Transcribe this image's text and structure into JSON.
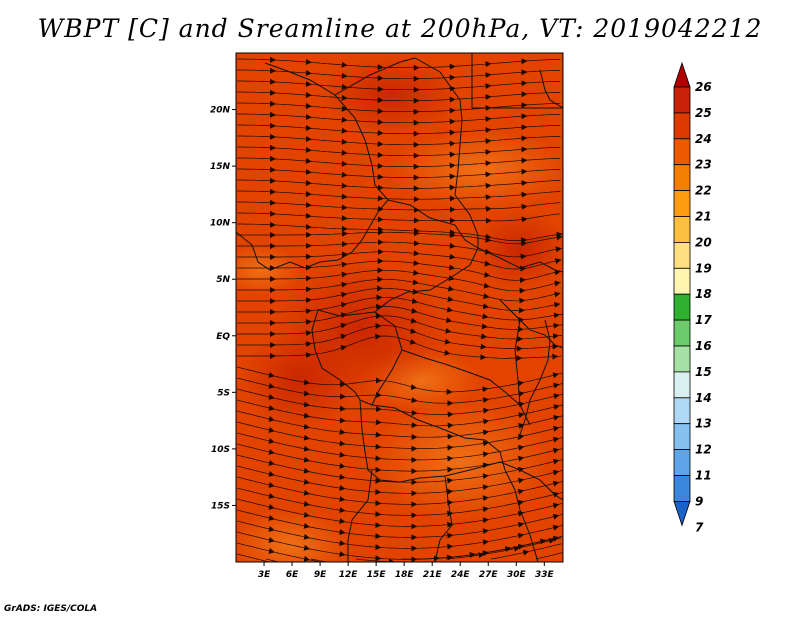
{
  "title": "WBPT [C] and Sreamline at 200hPa, VT: 2019042212",
  "credit": "GrADS: IGES/COLA",
  "chart_data": {
    "type": "heatmap",
    "variable": "WBPT [C]",
    "overlay": "streamlines",
    "level": "200hPa",
    "valid_time": "2019042212",
    "xlim": [
      0,
      35
    ],
    "ylim": [
      -20,
      25
    ],
    "x_ticks": [
      {
        "value": 3,
        "label": "3E"
      },
      {
        "value": 6,
        "label": "6E"
      },
      {
        "value": 9,
        "label": "9E"
      },
      {
        "value": 12,
        "label": "12E"
      },
      {
        "value": 15,
        "label": "15E"
      },
      {
        "value": 18,
        "label": "18E"
      },
      {
        "value": 21,
        "label": "21E"
      },
      {
        "value": 24,
        "label": "24E"
      },
      {
        "value": 27,
        "label": "27E"
      },
      {
        "value": 30,
        "label": "30E"
      },
      {
        "value": 33,
        "label": "33E"
      }
    ],
    "y_ticks": [
      {
        "value": 20,
        "label": "20N"
      },
      {
        "value": 15,
        "label": "15N"
      },
      {
        "value": 10,
        "label": "10N"
      },
      {
        "value": 5,
        "label": "5N"
      },
      {
        "value": 0,
        "label": "EQ"
      },
      {
        "value": -5,
        "label": "5S"
      },
      {
        "value": -10,
        "label": "10S"
      },
      {
        "value": -15,
        "label": "15S"
      }
    ],
    "colorbar": {
      "levels": [
        "26",
        "25",
        "24",
        "23",
        "22",
        "21",
        "20",
        "19",
        "18",
        "17",
        "16",
        "15",
        "14",
        "13",
        "12",
        "11",
        "9",
        "7"
      ],
      "colors": [
        "#b00000",
        "#c8220a",
        "#dc3a00",
        "#ec5a00",
        "#f57f00",
        "#fa9b10",
        "#fcbf40",
        "#fde080",
        "#fff4b0",
        "#30b030",
        "#6ccc6c",
        "#a6e0a6",
        "#d8f0f0",
        "#b0d8f4",
        "#86c0ee",
        "#5ea4e8",
        "#3a86dc",
        "#1a62c8"
      ]
    },
    "field_colors": {
      "low": "#d83000",
      "mid": "#e64a00",
      "high": "#f06a00"
    },
    "streamline_color": "#1a0a00",
    "border_color": "#111111"
  }
}
